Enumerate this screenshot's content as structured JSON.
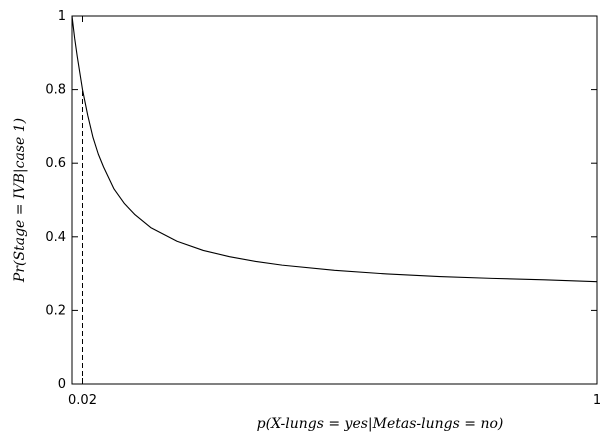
{
  "chart_data": {
    "type": "line",
    "title": "",
    "xlabel": "p(X-lungs = yes|Metas-lungs = no)",
    "ylabel": "Pr(Stage = IVB|case 1)",
    "xlim": [
      0,
      1
    ],
    "ylim": [
      0,
      1
    ],
    "x_ticks": [
      {
        "value": 0.02,
        "label": "0.02"
      },
      {
        "value": 1,
        "label": "1"
      }
    ],
    "y_ticks": [
      {
        "value": 0,
        "label": "0"
      },
      {
        "value": 0.2,
        "label": "0.2"
      },
      {
        "value": 0.4,
        "label": "0.4"
      },
      {
        "value": 0.6,
        "label": "0.6"
      },
      {
        "value": 0.8,
        "label": "0.8"
      },
      {
        "value": 1,
        "label": "1"
      }
    ],
    "grid": false,
    "series": [
      {
        "x": [
          0,
          0.005,
          0.01,
          0.02,
          0.03,
          0.04,
          0.05,
          0.06,
          0.08,
          0.1,
          0.12,
          0.15,
          0.2,
          0.25,
          0.3,
          0.35,
          0.4,
          0.5,
          0.6,
          0.7,
          0.8,
          0.9,
          1.0
        ],
        "y": [
          1.0,
          0.94,
          0.89,
          0.8,
          0.73,
          0.67,
          0.625,
          0.59,
          0.53,
          0.49,
          0.46,
          0.425,
          0.388,
          0.363,
          0.346,
          0.333,
          0.323,
          0.309,
          0.299,
          0.292,
          0.287,
          0.283,
          0.278
        ]
      }
    ],
    "reference_line": {
      "x": 0.02,
      "y": 0.8,
      "style": "dashed"
    }
  }
}
